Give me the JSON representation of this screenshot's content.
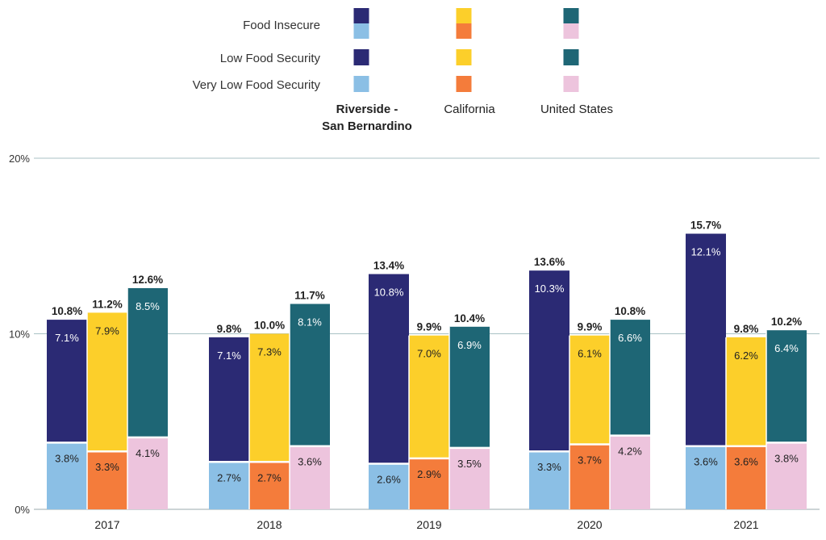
{
  "chart_data": {
    "type": "bar",
    "stacked": true,
    "categories": [
      "2017",
      "2018",
      "2019",
      "2020",
      "2021"
    ],
    "groups": [
      {
        "name": "Riverside -\nSan Bernardino",
        "colors": {
          "low": "#2b2a74",
          "very_low": "#8bbfe5"
        }
      },
      {
        "name": "California",
        "colors": {
          "low": "#fccf2a",
          "very_low": "#f47c3b"
        }
      },
      {
        "name": "United States",
        "colors": {
          "low": "#1e6675",
          "very_low": "#edc4dd"
        }
      }
    ],
    "components": [
      "Low Food Security",
      "Very Low Food Security"
    ],
    "legend_rows": [
      "Food Insecure",
      "Low Food Security",
      "Very Low Food Security"
    ],
    "values": {
      "low": [
        [
          "7.1%",
          "7.9%",
          "8.5%"
        ],
        [
          "7.1%",
          "7.3%",
          "8.1%"
        ],
        [
          "10.8%",
          "7.0%",
          "6.9%"
        ],
        [
          "10.3%",
          "6.1%",
          "6.6%"
        ],
        [
          "12.1%",
          "6.2%",
          "6.4%"
        ]
      ],
      "very_low": [
        [
          "3.8%",
          "3.3%",
          "4.1%"
        ],
        [
          "2.7%",
          "2.7%",
          "3.6%"
        ],
        [
          "2.6%",
          "2.9%",
          "3.5%"
        ],
        [
          "3.3%",
          "3.7%",
          "4.2%"
        ],
        [
          "3.6%",
          "3.6%",
          "3.8%"
        ]
      ],
      "total": [
        [
          "10.8%",
          "11.2%",
          "12.6%"
        ],
        [
          "9.8%",
          "10.0%",
          "11.7%"
        ],
        [
          "13.4%",
          "9.9%",
          "10.4%"
        ],
        [
          "13.6%",
          "9.9%",
          "10.8%"
        ],
        [
          "15.7%",
          "9.8%",
          "10.2%"
        ]
      ]
    },
    "y_ticks": [
      "0%",
      "10%",
      "20%"
    ],
    "ylim": [
      0,
      20
    ],
    "grid": true,
    "legend_position": "top-center"
  }
}
